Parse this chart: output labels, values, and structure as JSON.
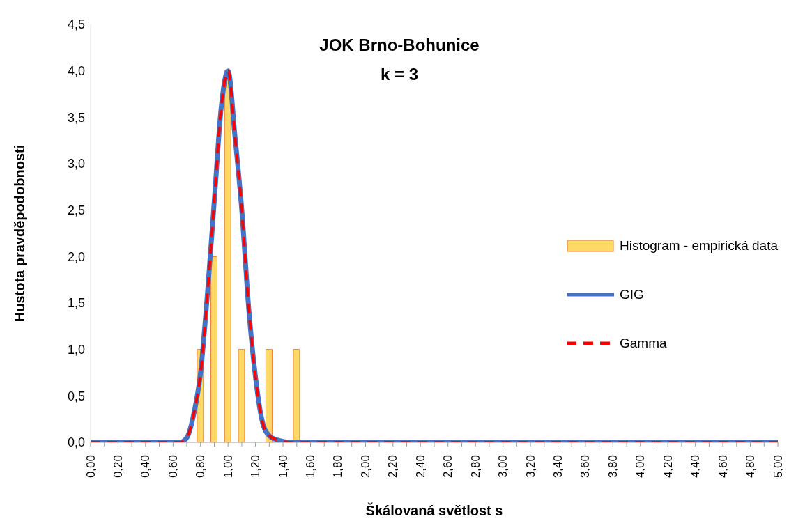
{
  "chart_data": {
    "type": "line",
    "title": "JOK Brno-Bohunice",
    "subtitle": "k = 3",
    "xlabel": "Škálovaná světlost s",
    "ylabel": "Hustota pravděpodobnosti",
    "xlim": [
      0,
      5
    ],
    "xticks": [
      {
        "value": 0,
        "label": "0,00"
      },
      {
        "value": 0.1,
        "label": null
      },
      {
        "value": 0.2,
        "label": "0,20"
      },
      {
        "value": 0.3,
        "label": null
      },
      {
        "value": 0.4,
        "label": "0,40"
      },
      {
        "value": 0.5,
        "label": null
      },
      {
        "value": 0.6,
        "label": "0,60"
      },
      {
        "value": 0.7,
        "label": null
      },
      {
        "value": 0.8,
        "label": "0,80"
      },
      {
        "value": 0.9,
        "label": null
      },
      {
        "value": 1,
        "label": "1,00"
      },
      {
        "value": 1.1,
        "label": null
      },
      {
        "value": 1.2,
        "label": "1,20"
      },
      {
        "value": 1.3,
        "label": null
      },
      {
        "value": 1.4,
        "label": "1,40"
      },
      {
        "value": 1.5,
        "label": null
      },
      {
        "value": 1.6,
        "label": "1,60"
      },
      {
        "value": 1.7,
        "label": null
      },
      {
        "value": 1.8,
        "label": "1,80"
      },
      {
        "value": 1.9,
        "label": null
      },
      {
        "value": 2,
        "label": "2,00"
      },
      {
        "value": 2.1,
        "label": null
      },
      {
        "value": 2.2,
        "label": "2,20"
      },
      {
        "value": 2.3,
        "label": null
      },
      {
        "value": 2.4,
        "label": "2,40"
      },
      {
        "value": 2.5,
        "label": null
      },
      {
        "value": 2.6,
        "label": "2,60"
      },
      {
        "value": 2.7,
        "label": null
      },
      {
        "value": 2.8,
        "label": "2,80"
      },
      {
        "value": 2.9,
        "label": null
      },
      {
        "value": 3,
        "label": "3,00"
      },
      {
        "value": 3.1,
        "label": null
      },
      {
        "value": 3.2,
        "label": "3,20"
      },
      {
        "value": 3.3,
        "label": null
      },
      {
        "value": 3.4,
        "label": "3,40"
      },
      {
        "value": 3.5,
        "label": null
      },
      {
        "value": 3.6,
        "label": "3,60"
      },
      {
        "value": 3.7,
        "label": null
      },
      {
        "value": 3.8,
        "label": "3,80"
      },
      {
        "value": 3.9,
        "label": null
      },
      {
        "value": 4,
        "label": "4,00"
      },
      {
        "value": 4.1,
        "label": null
      },
      {
        "value": 4.2,
        "label": "4,20"
      },
      {
        "value": 4.3,
        "label": null
      },
      {
        "value": 4.4,
        "label": "4,40"
      },
      {
        "value": 4.5,
        "label": null
      },
      {
        "value": 4.6,
        "label": "4,60"
      },
      {
        "value": 4.7,
        "label": null
      },
      {
        "value": 4.8,
        "label": "4,80"
      },
      {
        "value": 4.9,
        "label": null
      },
      {
        "value": 5,
        "label": "5,00"
      }
    ],
    "ylim": [
      0,
      4.5
    ],
    "yticks": [
      {
        "value": 0,
        "label": "0,0"
      },
      {
        "value": 0.5,
        "label": "0,5"
      },
      {
        "value": 1,
        "label": "1,0"
      },
      {
        "value": 1.5,
        "label": "1,5"
      },
      {
        "value": 2,
        "label": "2,0"
      },
      {
        "value": 2.5,
        "label": "2,5"
      },
      {
        "value": 3,
        "label": "3,0"
      },
      {
        "value": 3.5,
        "label": "3,5"
      },
      {
        "value": 4,
        "label": "4,0"
      },
      {
        "value": 4.5,
        "label": "4,5"
      }
    ],
    "grid": false,
    "legend": "right",
    "marker": "none",
    "series": [
      {
        "name": "Histogram - empirická data",
        "type": "bar",
        "color": "#ffd966",
        "x": [
          0.8,
          0.9,
          1.0,
          1.1,
          1.3,
          1.5
        ],
        "values": [
          1,
          2,
          4,
          1,
          1,
          1
        ]
      },
      {
        "name": "GIG",
        "color": "#4472c4",
        "line_style": "solid",
        "x": [
          0,
          0.2,
          0.4,
          0.6,
          0.65,
          0.7,
          0.75,
          0.8,
          0.85,
          0.9,
          0.95,
          1.0,
          1.05,
          1.1,
          1.15,
          1.2,
          1.25,
          1.3,
          1.35,
          1.4,
          1.45,
          1.6,
          2,
          3,
          4,
          5
        ],
        "values": [
          0,
          0,
          0,
          0,
          0,
          0.05,
          0.3,
          0.75,
          1.6,
          2.6,
          3.6,
          4.0,
          3.3,
          2.5,
          1.45,
          0.7,
          0.22,
          0.07,
          0.03,
          0.01,
          0,
          0,
          0,
          0,
          0,
          0
        ]
      },
      {
        "name": "Gamma",
        "color": "#ff0000",
        "line_style": "dashed",
        "x": [
          0,
          0.2,
          0.4,
          0.6,
          0.65,
          0.7,
          0.75,
          0.8,
          0.85,
          0.9,
          0.95,
          1.0,
          1.05,
          1.1,
          1.15,
          1.2,
          1.25,
          1.3,
          1.35,
          1.4,
          1.45,
          1.6,
          2,
          3,
          4,
          5
        ],
        "values": [
          0,
          0,
          0,
          0,
          0,
          0.05,
          0.3,
          0.75,
          1.6,
          2.6,
          3.6,
          4.0,
          3.3,
          2.5,
          1.45,
          0.7,
          0.22,
          0.07,
          0.03,
          0.01,
          0,
          0,
          0,
          0,
          0,
          0
        ]
      }
    ]
  }
}
